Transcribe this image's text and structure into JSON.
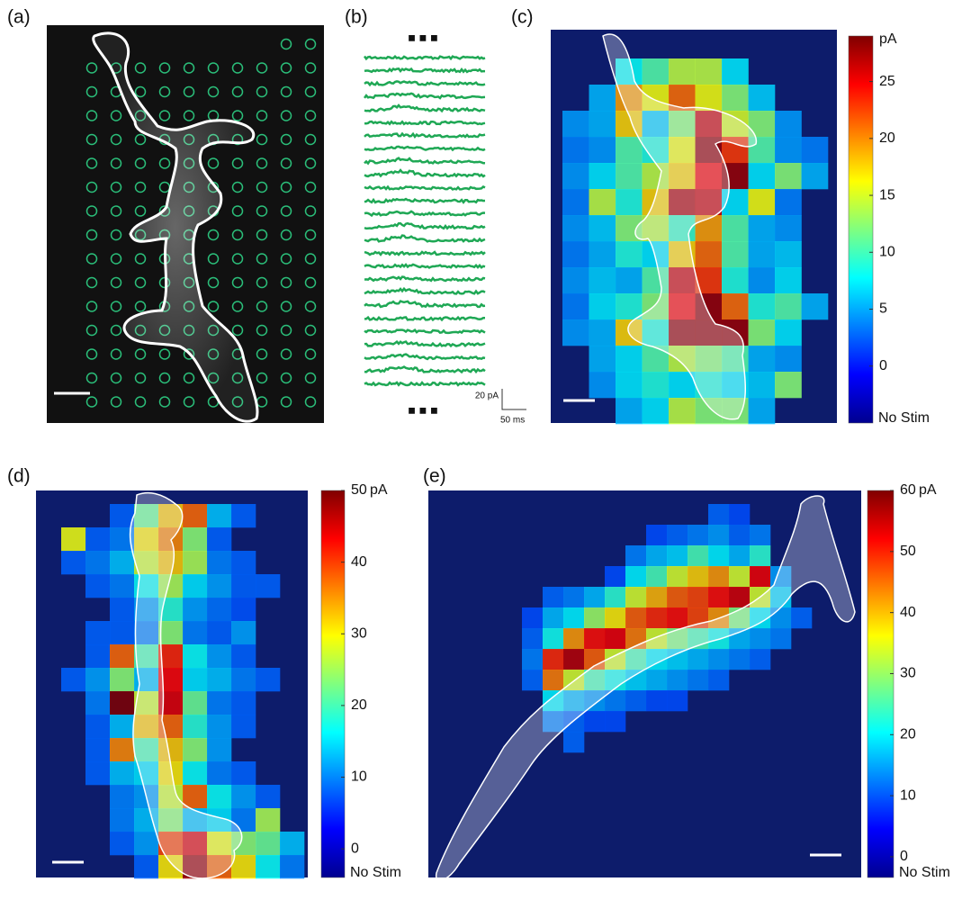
{
  "panels": {
    "a": {
      "label": "(a)"
    },
    "b": {
      "label": "(b)",
      "scale_y": "20 pA",
      "scale_x": "50 ms"
    }
  },
  "chart_data": [
    {
      "type": "heatmap",
      "label": "(c)",
      "unit": "pA",
      "nodata_label": "No Stim",
      "ylim": [
        -5,
        29
      ],
      "yticks": [
        0,
        5,
        10,
        15,
        20,
        25
      ],
      "cells": [
        [
          null,
          null,
          5,
          8,
          12,
          12,
          4,
          null,
          null,
          null
        ],
        [
          null,
          2,
          18,
          14,
          20,
          14,
          10,
          3,
          null,
          null
        ],
        [
          1,
          2,
          16,
          3,
          10,
          26,
          13,
          10,
          1,
          null
        ],
        [
          0,
          1,
          8,
          6,
          14,
          28,
          22,
          8,
          1,
          0
        ],
        [
          1,
          4,
          8,
          12,
          16,
          24,
          28,
          4,
          10,
          2
        ],
        [
          0,
          12,
          6,
          16,
          27,
          26,
          4,
          14,
          0,
          null
        ],
        [
          1,
          3,
          10,
          12,
          7,
          18,
          8,
          2,
          1,
          null
        ],
        [
          0,
          2,
          6,
          4,
          16,
          20,
          8,
          2,
          3,
          null
        ],
        [
          1,
          3,
          2,
          8,
          26,
          22,
          6,
          1,
          4,
          null
        ],
        [
          0,
          4,
          6,
          10,
          24,
          28,
          20,
          6,
          8,
          2
        ],
        [
          1,
          2,
          16,
          6,
          28,
          28,
          28,
          10,
          4,
          null
        ],
        [
          null,
          2,
          4,
          8,
          12,
          10,
          8,
          2,
          1,
          null
        ],
        [
          null,
          1,
          4,
          6,
          4,
          6,
          4,
          3,
          10,
          null
        ],
        [
          null,
          null,
          2,
          4,
          12,
          10,
          10,
          2,
          null,
          null
        ]
      ]
    },
    {
      "type": "heatmap",
      "label": "(d)",
      "unit": "pA",
      "nodata_label": "No Stim",
      "ylim": [
        -4,
        50
      ],
      "yticks": [
        0,
        10,
        20,
        30,
        40,
        50
      ],
      "cells": [
        [
          null,
          null,
          2,
          18,
          30,
          36,
          8,
          2,
          null,
          null
        ],
        [
          26,
          2,
          4,
          28,
          34,
          20,
          2,
          null,
          null,
          null
        ],
        [
          2,
          4,
          8,
          24,
          30,
          22,
          4,
          2,
          null,
          null
        ],
        [
          null,
          2,
          4,
          12,
          22,
          10,
          6,
          2,
          2,
          null
        ],
        [
          null,
          null,
          2,
          6,
          14,
          6,
          3,
          1,
          null,
          null
        ],
        [
          null,
          2,
          2,
          4,
          20,
          4,
          2,
          6,
          null,
          null
        ],
        [
          null,
          2,
          36,
          16,
          40,
          12,
          6,
          2,
          null,
          null
        ],
        [
          2,
          6,
          20,
          8,
          42,
          10,
          8,
          4,
          2,
          null
        ],
        [
          null,
          4,
          50,
          24,
          44,
          18,
          4,
          2,
          null,
          null
        ],
        [
          null,
          2,
          8,
          30,
          36,
          14,
          6,
          2,
          null,
          null
        ],
        [
          null,
          2,
          34,
          16,
          30,
          20,
          6,
          null,
          null,
          null
        ],
        [
          null,
          2,
          8,
          10,
          28,
          12,
          4,
          2,
          null,
          null
        ],
        [
          null,
          null,
          4,
          6,
          24,
          36,
          12,
          6,
          2,
          null
        ],
        [
          null,
          null,
          4,
          8,
          20,
          8,
          10,
          4,
          22,
          null
        ],
        [
          null,
          null,
          2,
          6,
          38,
          44,
          26,
          20,
          18,
          8
        ],
        [
          null,
          null,
          null,
          2,
          28,
          48,
          36,
          28,
          12,
          4
        ]
      ]
    },
    {
      "type": "heatmap",
      "label": "(e)",
      "unit": "pA",
      "nodata_label": "No Stim",
      "ylim": [
        -3.4,
        60
      ],
      "yticks": [
        0,
        10,
        20,
        30,
        40,
        50,
        60
      ],
      "cells": [
        [
          null,
          null,
          null,
          null,
          null,
          null,
          null,
          null,
          null,
          4,
          2,
          null,
          null,
          null
        ],
        [
          null,
          null,
          null,
          null,
          null,
          null,
          2,
          4,
          6,
          8,
          4,
          6,
          null,
          null
        ],
        [
          null,
          null,
          null,
          null,
          null,
          6,
          10,
          12,
          20,
          14,
          10,
          18,
          null,
          null
        ],
        [
          null,
          null,
          null,
          null,
          2,
          14,
          20,
          30,
          36,
          40,
          30,
          52,
          8,
          null
        ],
        [
          null,
          4,
          6,
          10,
          18,
          30,
          38,
          44,
          46,
          50,
          54,
          30,
          12,
          null
        ],
        [
          2,
          10,
          14,
          26,
          34,
          44,
          48,
          50,
          46,
          40,
          24,
          14,
          8,
          4
        ],
        [
          4,
          16,
          40,
          50,
          52,
          42,
          30,
          24,
          20,
          16,
          10,
          8,
          6,
          null
        ],
        [
          6,
          48,
          56,
          44,
          30,
          20,
          14,
          12,
          10,
          8,
          6,
          4,
          null,
          null
        ],
        [
          4,
          42,
          30,
          20,
          16,
          12,
          10,
          8,
          6,
          4,
          null,
          null,
          null,
          null
        ],
        [
          null,
          14,
          10,
          8,
          6,
          4,
          2,
          2,
          null,
          null,
          null,
          null,
          null,
          null
        ],
        [
          null,
          6,
          4,
          2,
          2,
          null,
          null,
          null,
          null,
          null,
          null,
          null,
          null,
          null
        ],
        [
          null,
          null,
          4,
          null,
          null,
          null,
          null,
          null,
          null,
          null,
          null,
          null,
          null,
          null
        ]
      ]
    }
  ]
}
